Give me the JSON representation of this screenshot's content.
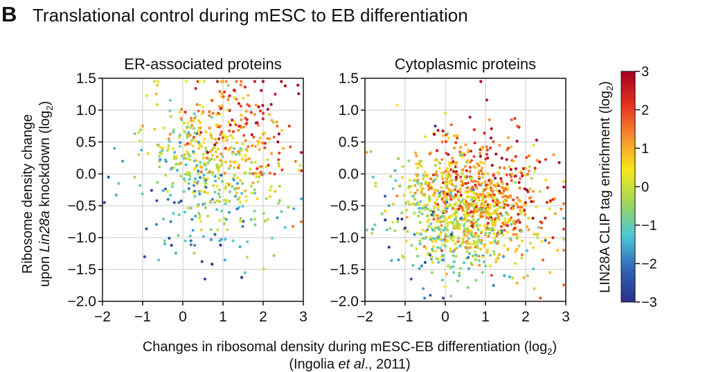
{
  "panel_letter": "B",
  "figure_title": "Translational control during mESC to EB differentiation",
  "shared_ylabel_line1": "Ribosome density change",
  "shared_ylabel_line2_prefix": "upon ",
  "shared_ylabel_line2_italic": "Lin28a",
  "shared_ylabel_line2_suffix": " knockdown (log",
  "shared_ylabel_line2_sub": "2",
  "shared_ylabel_line2_end": ")",
  "shared_xlabel_main": "Changes in ribosomal density during mESC-EB differentiation (log",
  "shared_xlabel_sub": "2",
  "shared_xlabel_end": ")",
  "citation_prefix": "(Ingolia ",
  "citation_italic": "et al",
  "citation_suffix": "., 2011)",
  "colorbar": {
    "label_main": "LIN28A CLIP tag enrichment (log",
    "label_sub": "2",
    "label_end": ")",
    "range": [
      -3,
      3
    ],
    "ticks": [
      "3",
      "2",
      "1",
      "0",
      "−1",
      "−2",
      "−3"
    ],
    "colors": [
      "#a50026",
      "#e3301e",
      "#f98e2e",
      "#f6e81c",
      "#9ed65a",
      "#49c7d8",
      "#2f66b5",
      "#2b2f8a"
    ]
  },
  "chart_data": [
    {
      "type": "scatter",
      "title": "ER-associated proteins",
      "xlim": [
        -2,
        3
      ],
      "ylim": [
        -2.0,
        1.5
      ],
      "xticks": [
        "−2",
        "−1",
        "0",
        "1",
        "2",
        "3"
      ],
      "yticks": [
        "1.5",
        "1.0",
        "0.5",
        "0.0",
        "−0.5",
        "−1.0",
        "−1.5",
        "−2.0"
      ],
      "grid": true,
      "color_encoding": "LIN28A CLIP tag enrichment (log2)",
      "points": [
        [
          1.45,
          1.45,
          1.5
        ],
        [
          2.55,
          1.38,
          2.8
        ],
        [
          2.3,
          1.25,
          2.6
        ],
        [
          1.0,
          1.45,
          1.0
        ],
        [
          -0.7,
          1.45,
          0.0
        ],
        [
          0.1,
          0.35,
          0.5
        ],
        [
          0.75,
          0.95,
          1.6
        ],
        [
          2.0,
          0.95,
          2.2
        ],
        [
          2.5,
          0.4,
          1.0
        ],
        [
          -0.35,
          0.55,
          1.2
        ],
        [
          -0.1,
          0.15,
          0.2
        ],
        [
          -0.25,
          -0.15,
          -0.5
        ],
        [
          0.3,
          -0.35,
          -1.0
        ],
        [
          0.05,
          -0.6,
          -1.2
        ],
        [
          -0.3,
          -0.75,
          -1.8
        ],
        [
          0.2,
          -1.05,
          -2.0
        ],
        [
          -0.45,
          -1.1,
          -1.4
        ],
        [
          -0.6,
          -1.35,
          -1.0
        ],
        [
          -0.95,
          -1.3,
          -2.6
        ],
        [
          0.55,
          -1.65,
          -2.6
        ],
        [
          1.55,
          -1.55,
          -1.2
        ],
        [
          1.05,
          -1.35,
          -1.5
        ],
        [
          1.8,
          -0.8,
          -0.8
        ],
        [
          1.35,
          -0.55,
          -1.9
        ],
        [
          2.2,
          -0.2,
          0.3
        ],
        [
          -1.0,
          0.75,
          1.2
        ],
        [
          -1.1,
          0.3,
          -0.2
        ],
        [
          -1.2,
          -0.05,
          -0.5
        ],
        [
          -1.5,
          0.2,
          -1.6
        ],
        [
          -1.7,
          0.4,
          -1.4
        ],
        [
          -1.85,
          -0.05,
          -2.4
        ],
        [
          -1.95,
          -0.45,
          -2.8
        ],
        [
          -1.6,
          -0.15,
          -1.0
        ],
        [
          -1.1,
          0.65,
          0.6
        ],
        [
          2.35,
          0.75,
          1.6
        ],
        [
          1.3,
          1.3,
          1.9
        ],
        [
          1.9,
          0.5,
          0.6
        ],
        [
          2.65,
          0.75,
          2.1
        ],
        [
          1.6,
          0.85,
          2.3
        ],
        [
          0.9,
          0.55,
          2.4
        ],
        [
          -0.7,
          0.7,
          0.8
        ],
        [
          -0.3,
          0.9,
          -0.2
        ],
        [
          0.6,
          0.25,
          1.4
        ],
        [
          1.1,
          -0.15,
          0.4
        ],
        [
          1.9,
          -0.05,
          -0.4
        ],
        [
          0.45,
          0.65,
          2.5
        ],
        [
          2.15,
          0.55,
          1.3
        ],
        [
          0.8,
          -0.95,
          -2.2
        ],
        [
          1.25,
          -1.05,
          -1.1
        ],
        [
          -0.45,
          -1.05,
          -0.7
        ]
      ]
    },
    {
      "type": "scatter",
      "title": "Cytoplasmic proteins",
      "xlim": [
        -2,
        3
      ],
      "ylim": [
        -2.0,
        1.5
      ],
      "xticks": [
        "−2",
        "−1",
        "0",
        "1",
        "2",
        "3"
      ],
      "yticks": [
        "1.5",
        "1.0",
        "0.5",
        "0.0",
        "−0.5",
        "−1.0",
        "−1.5",
        "−2.0"
      ],
      "grid": true,
      "color_encoding": "LIN28A CLIP tag enrichment (log2)",
      "points": [
        [
          0.0,
          0.95,
          0.1
        ],
        [
          1.65,
          0.85,
          1.8
        ],
        [
          2.2,
          0.45,
          0.3
        ],
        [
          -0.25,
          0.75,
          -2.8
        ],
        [
          -0.05,
          0.6,
          0.8
        ],
        [
          -1.85,
          0.35,
          -0.5
        ],
        [
          -1.8,
          -0.05,
          -1.2
        ],
        [
          -1.75,
          -0.8,
          -0.9
        ],
        [
          -1.4,
          -1.15,
          -2.9
        ],
        [
          -0.85,
          -1.65,
          -2.4
        ],
        [
          -0.55,
          -1.8,
          -1.6
        ],
        [
          -0.05,
          -1.95,
          -2.5
        ],
        [
          0.35,
          -1.6,
          -1.1
        ],
        [
          1.2,
          -1.75,
          -1.9
        ],
        [
          2.05,
          -1.6,
          -0.5
        ],
        [
          2.7,
          0.3,
          1.2
        ],
        [
          2.5,
          -0.1,
          0.5
        ],
        [
          2.6,
          -0.55,
          0.2
        ],
        [
          1.8,
          0.75,
          1.7
        ],
        [
          1.35,
          0.45,
          1.2
        ],
        [
          0.4,
          0.3,
          -0.9
        ],
        [
          -0.6,
          0.2,
          -0.3
        ],
        [
          -1.25,
          0.05,
          -1.5
        ],
        [
          0.7,
          -0.25,
          -2.0
        ],
        [
          1.0,
          -0.5,
          0.6
        ],
        [
          1.55,
          -0.25,
          1.0
        ],
        [
          1.9,
          -0.9,
          -0.7
        ],
        [
          -0.3,
          -0.6,
          -2.4
        ],
        [
          0.15,
          -0.95,
          -2.7
        ],
        [
          -1.0,
          -0.85,
          -2.9
        ],
        [
          0.6,
          -1.25,
          -1.3
        ],
        [
          1.45,
          -1.3,
          -1.6
        ],
        [
          2.3,
          -1.0,
          -0.1
        ],
        [
          -0.8,
          -0.35,
          -1.0
        ],
        [
          0.9,
          0.05,
          1.6
        ],
        [
          1.7,
          0.2,
          0.9
        ],
        [
          -1.5,
          -0.35,
          -2.2
        ],
        [
          -0.15,
          -0.3,
          -1.6
        ],
        [
          0.3,
          0.6,
          0.9
        ],
        [
          1.1,
          0.85,
          1.3
        ]
      ]
    }
  ]
}
